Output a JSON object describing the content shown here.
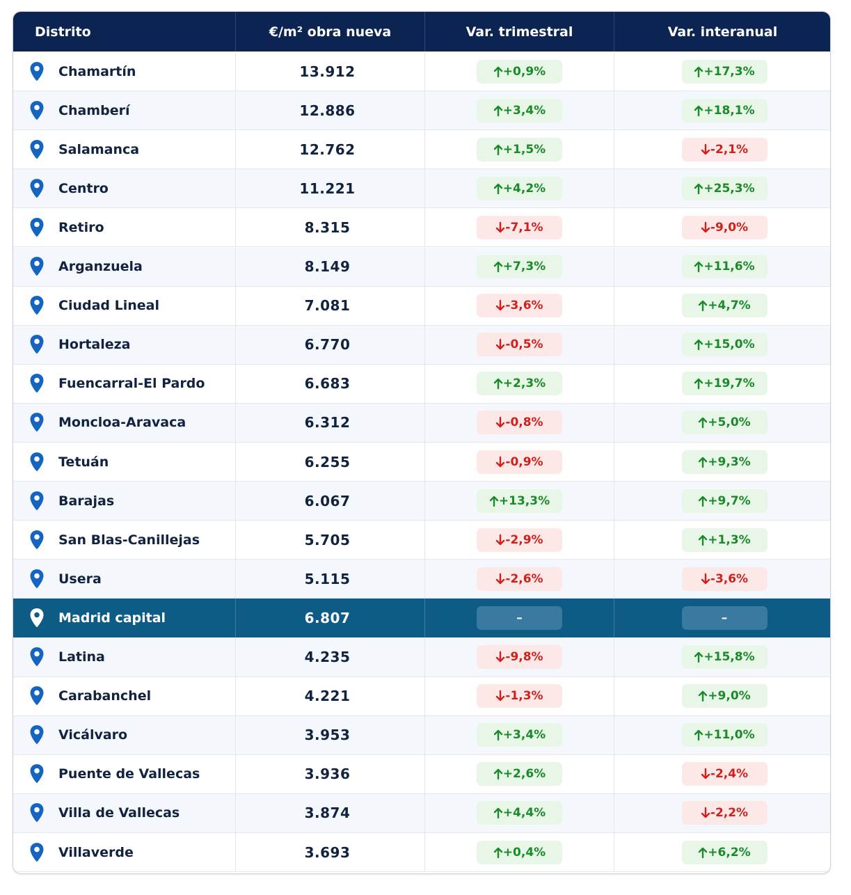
{
  "table": {
    "headers": {
      "district": "Distrito",
      "price": "€/m² obra nueva",
      "quarterly": "Var. trimestral",
      "yearly": "Var. interanual"
    },
    "rows": [
      {
        "district": "Chamartín",
        "price": "13.912",
        "quarterly": "+0,9%",
        "q_trend": "up",
        "yearly": "+17,3%",
        "y_trend": "up"
      },
      {
        "district": "Chamberí",
        "price": "12.886",
        "quarterly": "+3,4%",
        "q_trend": "up",
        "yearly": "+18,1%",
        "y_trend": "up"
      },
      {
        "district": "Salamanca",
        "price": "12.762",
        "quarterly": "+1,5%",
        "q_trend": "up",
        "yearly": "-2,1%",
        "y_trend": "down"
      },
      {
        "district": "Centro",
        "price": "11.221",
        "quarterly": "+4,2%",
        "q_trend": "up",
        "yearly": "+25,3%",
        "y_trend": "up"
      },
      {
        "district": "Retiro",
        "price": "8.315",
        "quarterly": "-7,1%",
        "q_trend": "down",
        "yearly": "-9,0%",
        "y_trend": "down"
      },
      {
        "district": "Arganzuela",
        "price": "8.149",
        "quarterly": "+7,3%",
        "q_trend": "up",
        "yearly": "+11,6%",
        "y_trend": "up"
      },
      {
        "district": "Ciudad Lineal",
        "price": "7.081",
        "quarterly": "-3,6%",
        "q_trend": "down",
        "yearly": "+4,7%",
        "y_trend": "up"
      },
      {
        "district": "Hortaleza",
        "price": "6.770",
        "quarterly": "-0,5%",
        "q_trend": "down",
        "yearly": "+15,0%",
        "y_trend": "up"
      },
      {
        "district": "Fuencarral-El Pardo",
        "price": "6.683",
        "quarterly": "+2,3%",
        "q_trend": "up",
        "yearly": "+19,7%",
        "y_trend": "up"
      },
      {
        "district": "Moncloa-Aravaca",
        "price": "6.312",
        "quarterly": "-0,8%",
        "q_trend": "down",
        "yearly": "+5,0%",
        "y_trend": "up"
      },
      {
        "district": "Tetuán",
        "price": "6.255",
        "quarterly": "-0,9%",
        "q_trend": "down",
        "yearly": "+9,3%",
        "y_trend": "up"
      },
      {
        "district": "Barajas",
        "price": "6.067",
        "quarterly": "+13,3%",
        "q_trend": "up",
        "yearly": "+9,7%",
        "y_trend": "up"
      },
      {
        "district": "San Blas-Canillejas",
        "price": "5.705",
        "quarterly": "-2,9%",
        "q_trend": "down",
        "yearly": "+1,3%",
        "y_trend": "up"
      },
      {
        "district": "Usera",
        "price": "5.115",
        "quarterly": "-2,6%",
        "q_trend": "down",
        "yearly": "-3,6%",
        "y_trend": "down"
      },
      {
        "district": "Madrid capital",
        "price": "6.807",
        "quarterly": "–",
        "q_trend": "neutral",
        "yearly": "–",
        "y_trend": "neutral",
        "highlight": true
      },
      {
        "district": "Latina",
        "price": "4.235",
        "quarterly": "-9,8%",
        "q_trend": "down",
        "yearly": "+15,8%",
        "y_trend": "up"
      },
      {
        "district": "Carabanchel",
        "price": "4.221",
        "quarterly": "-1,3%",
        "q_trend": "down",
        "yearly": "+9,0%",
        "y_trend": "up"
      },
      {
        "district": "Vicálvaro",
        "price": "3.953",
        "quarterly": "+3,4%",
        "q_trend": "up",
        "yearly": "+11,0%",
        "y_trend": "up"
      },
      {
        "district": "Puente de Vallecas",
        "price": "3.936",
        "quarterly": "+2,6%",
        "q_trend": "up",
        "yearly": "-2,4%",
        "y_trend": "down"
      },
      {
        "district": "Villa de Vallecas",
        "price": "3.874",
        "quarterly": "+4,4%",
        "q_trend": "up",
        "yearly": "-2,2%",
        "y_trend": "down"
      },
      {
        "district": "Villaverde",
        "price": "3.693",
        "quarterly": "+0,4%",
        "q_trend": "up",
        "yearly": "+6,2%",
        "y_trend": "up"
      }
    ]
  },
  "colors": {
    "header_bg": "#0c2451",
    "highlight_bg": "#0e5c86",
    "pin": "#1565c0",
    "up_text": "#1b8a2a",
    "up_bg": "#e7f6e7",
    "down_text": "#d0201c",
    "down_bg": "#fde8e8"
  },
  "icons": {
    "location": "location-pin-icon",
    "up": "arrow-up-icon",
    "down": "arrow-down-icon"
  }
}
